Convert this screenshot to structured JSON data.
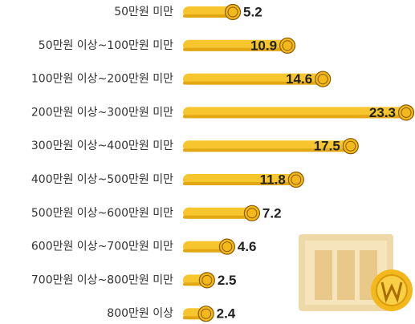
{
  "chart_data": {
    "type": "bar",
    "orientation": "horizontal",
    "categories": [
      "50만원 미만",
      "50만원 이상~100만원 미만",
      "100만원 이상~200만원 미만",
      "200만원 이상~300만원 미만",
      "300만원 이상~400만원 미만",
      "400만원 이상~500만원 미만",
      "500만원 이상~600만원 미만",
      "600만원 이상~700만원 미만",
      "700만원 이상~800만원 미만",
      "800만원 이상"
    ],
    "values": [
      5.2,
      10.9,
      14.6,
      23.3,
      17.5,
      11.8,
      7.2,
      4.6,
      2.5,
      2.4
    ],
    "color": "#f7c62f"
  }
}
